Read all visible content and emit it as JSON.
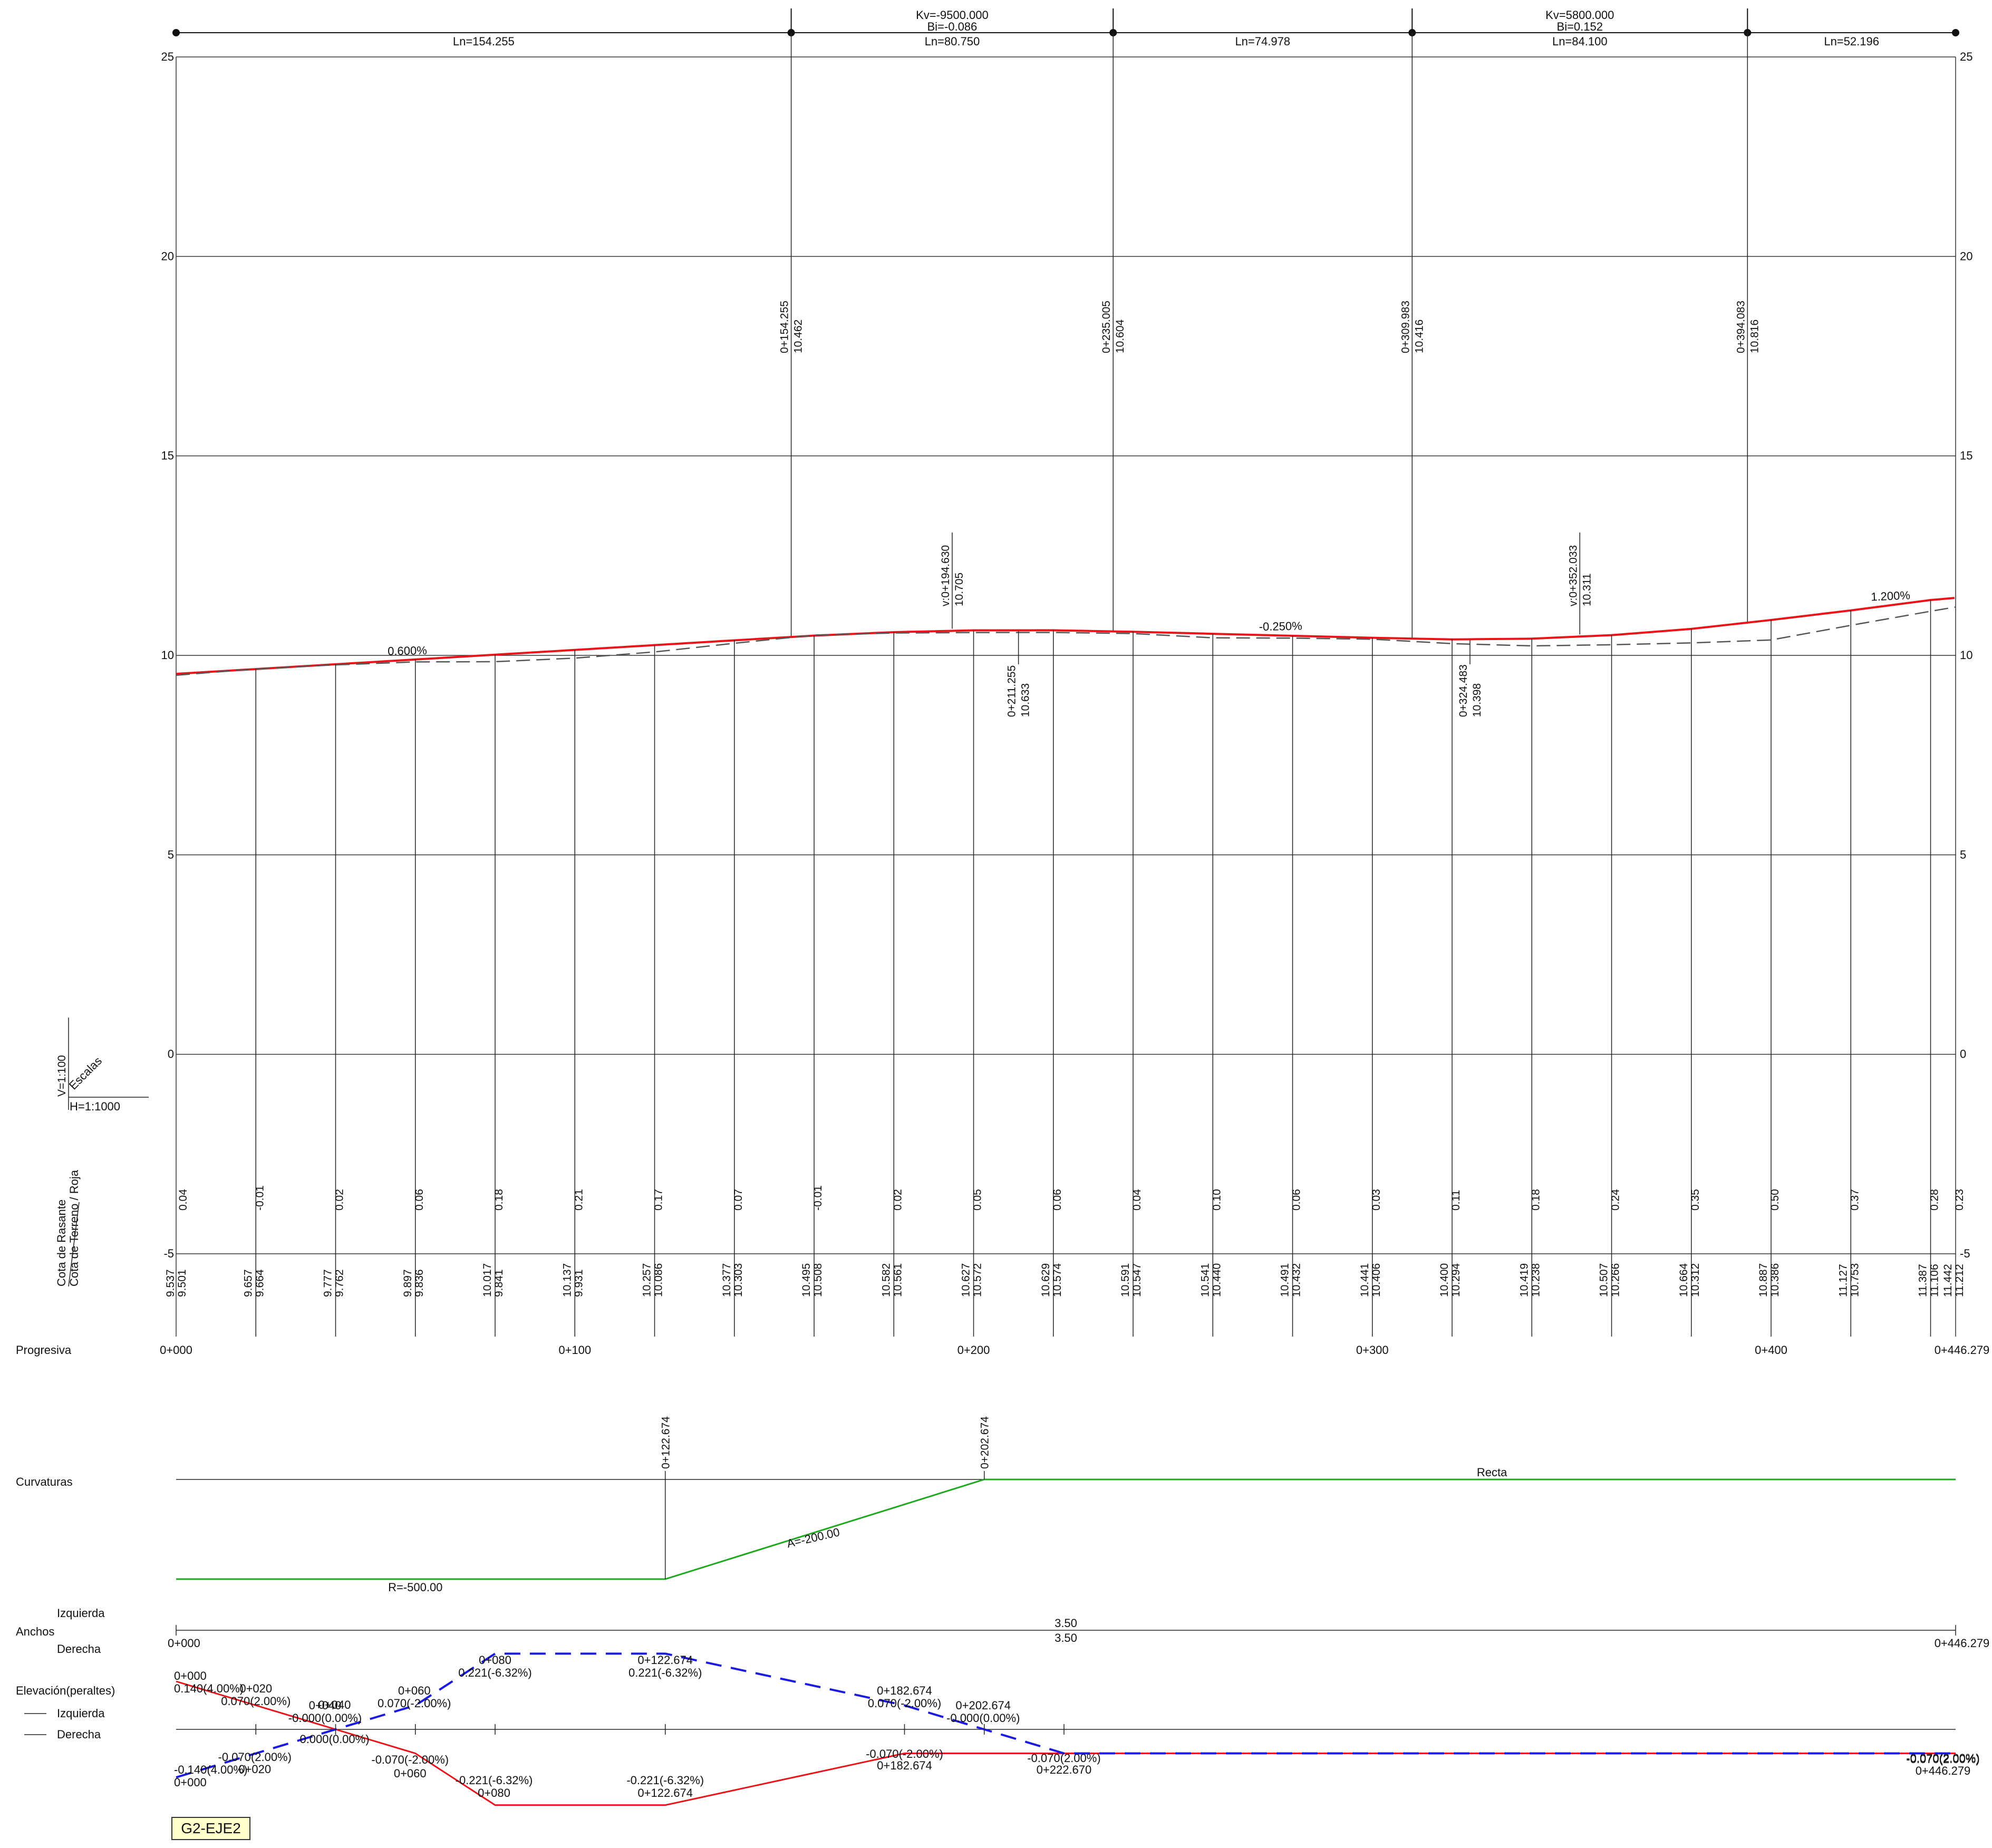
{
  "plan_tag": "G2-EJE2",
  "y_ticks": [
    "25",
    "20",
    "15",
    "10",
    "5",
    "0",
    "-5"
  ],
  "top_band": {
    "segments": [
      "Ln=154.255",
      "Ln=80.750",
      "Ln=74.978",
      "Ln=84.100",
      "Ln=52.196"
    ],
    "curve1": [
      "Kv=-9500.000",
      "Bi=-0.086"
    ],
    "curve2": [
      "Kv=5800.000",
      "Bi=0.152"
    ]
  },
  "vpi_labels": [
    [
      "0+154.255",
      "10.462"
    ],
    [
      "0+235.005",
      "10.604"
    ],
    [
      "0+309.983",
      "10.416"
    ],
    [
      "0+394.083",
      "10.816"
    ]
  ],
  "vertex_labels": [
    [
      "v:0+194.630",
      "10.705"
    ],
    [
      "v:0+352.033",
      "10.311"
    ]
  ],
  "tangent_labels": [
    [
      "0+211.255",
      "10.633"
    ],
    [
      "0+324.483",
      "10.398"
    ]
  ],
  "slopes": [
    "0.600%",
    "-0.250%",
    "1.200%"
  ],
  "scales": {
    "title": "Escalas",
    "v": "V=1:100",
    "h": "H=1:1000"
  },
  "band_titles": {
    "cota_rasante": "Cota de Rasante",
    "cota_terreno": "Cota de Terreno / Roja",
    "progresiva": "Progresiva",
    "curvaturas": "Curvaturas",
    "izquierda": "Izquierda",
    "anchos": "Anchos",
    "derecha": "Derecha",
    "elevacion": "Elevación(peraltes)",
    "leg_izq": "Izquierda",
    "leg_der": "Derecha"
  },
  "stations": [
    {
      "d": "0.04",
      "r": "9.537",
      "t": "9.501"
    },
    {
      "d": "-0.01",
      "r": "9.657",
      "t": "9.664"
    },
    {
      "d": "0.02",
      "r": "9.777",
      "t": "9.762"
    },
    {
      "d": "0.06",
      "r": "9.897",
      "t": "9.836"
    },
    {
      "d": "0.18",
      "r": "10.017",
      "t": "9.841"
    },
    {
      "d": "0.21",
      "r": "10.137",
      "t": "9.931"
    },
    {
      "d": "0.17",
      "r": "10.257",
      "t": "10.086"
    },
    {
      "d": "0.07",
      "r": "10.377",
      "t": "10.303"
    },
    {
      "d": "-0.01",
      "r": "10.495",
      "t": "10.508"
    },
    {
      "d": "0.02",
      "r": "10.582",
      "t": "10.561"
    },
    {
      "d": "0.05",
      "r": "10.627",
      "t": "10.572"
    },
    {
      "d": "0.06",
      "r": "10.629",
      "t": "10.574"
    },
    {
      "d": "0.04",
      "r": "10.591",
      "t": "10.547"
    },
    {
      "d": "0.10",
      "r": "10.541",
      "t": "10.440"
    },
    {
      "d": "0.06",
      "r": "10.491",
      "t": "10.432"
    },
    {
      "d": "0.03",
      "r": "10.441",
      "t": "10.406"
    },
    {
      "d": "0.11",
      "r": "10.400",
      "t": "10.294"
    },
    {
      "d": "0.18",
      "r": "10.419",
      "t": "10.238"
    },
    {
      "d": "0.24",
      "r": "10.507",
      "t": "10.266"
    },
    {
      "d": "0.35",
      "r": "10.664",
      "t": "10.312"
    },
    {
      "d": "0.50",
      "r": "10.887",
      "t": "10.386"
    },
    {
      "d": "0.37",
      "r": "11.127",
      "t": "10.753"
    },
    {
      "d": "0.28",
      "r": "11.387",
      "t": "11.106"
    },
    {
      "d": "0.23",
      "r": "11.442",
      "t": "11.212"
    }
  ],
  "progresiva": [
    "0+000",
    "0+100",
    "0+200",
    "0+300",
    "0+400",
    "0+446.279"
  ],
  "curvature": {
    "ts1": "0+122.674",
    "ts2": "0+202.674",
    "radius": "R=-500.00",
    "spiral": "A=-200.00",
    "tangent": "Recta"
  },
  "anchos": {
    "left_width": "3.50",
    "right_width": "3.50",
    "start": "0+000",
    "end": "0+446.279"
  },
  "peraltes": {
    "red": [
      [
        "0+000",
        "0.140(4.00%)"
      ],
      [
        "0+020",
        "0.070(2.00%)"
      ],
      [
        "0.000(0.00%)",
        ""
      ],
      [
        "-0.070(-2.00%)",
        "0+060"
      ],
      [
        "-0.221(-6.32%)",
        "0+080"
      ],
      [
        "-0.221(-6.32%)",
        "0+122.674"
      ],
      [
        "-0.070(-2.00%)",
        "0+182.674"
      ],
      [
        "-0.070(2.00%)",
        ""
      ]
    ],
    "blue": [
      [
        "-0.140(4.00%)",
        "0+000"
      ],
      [
        "-0.070(2.00%)",
        "0+020"
      ],
      [
        "0+040",
        "-0.000(0.00%)"
      ],
      [
        "0+060",
        "0.070(-2.00%)"
      ],
      [
        "0+080",
        "0.221(-6.32%)"
      ],
      [
        "0+122.674",
        "0.221(-6.32%)"
      ],
      [
        "0+182.674",
        "0.070(-2.00%)"
      ],
      [
        "0+202.674",
        "-0.000(0.00%)"
      ],
      [
        "-0.070(2.00%)",
        "0+222.670"
      ],
      [
        "-0.070(2.00%)",
        "0+446.279"
      ]
    ],
    "shared_mid": "0+040"
  },
  "colors": {
    "grade": "#e8141a",
    "terrain": "#555555",
    "curvature": "#1ea81e",
    "right_superelev": "#e8141a",
    "left_superelev": "#1a1ae0",
    "text": "#111111",
    "tag_bg": "#ffffcc"
  }
}
